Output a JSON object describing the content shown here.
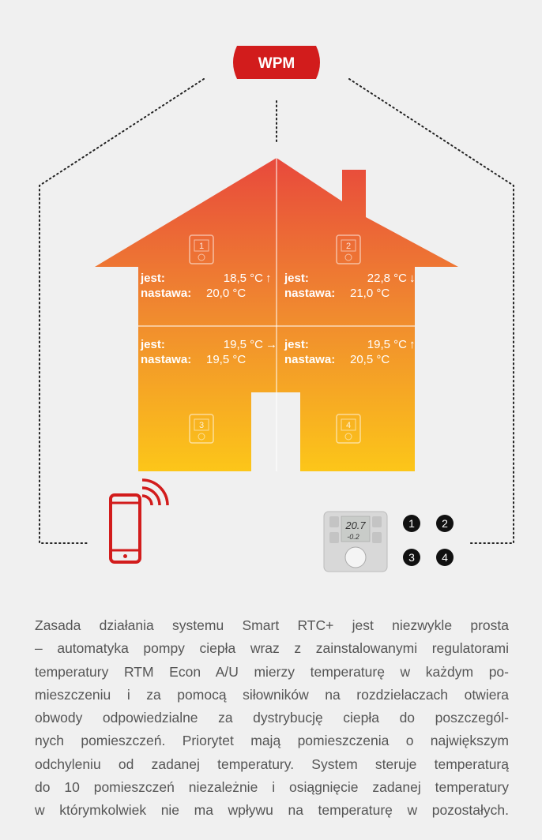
{
  "badge": {
    "label": "WPM"
  },
  "rooms": [
    {
      "number": "1",
      "jest_label": "jest:",
      "jest_value": "18,5 °C",
      "arrow": "↑",
      "nastawa_label": "nastawa:",
      "nastawa_value": "20,0 °C"
    },
    {
      "number": "2",
      "jest_label": "jest:",
      "jest_value": "22,8 °C",
      "arrow": "↓",
      "nastawa_label": "nastawa:",
      "nastawa_value": "21,0 °C"
    },
    {
      "number": "3",
      "jest_label": "jest:",
      "jest_value": "19,5 °C",
      "arrow": "→",
      "nastawa_label": "nastawa:",
      "nastawa_value": "19,5 °C"
    },
    {
      "number": "4",
      "jest_label": "jest:",
      "jest_value": "19,5 °C",
      "arrow": "↑",
      "nastawa_label": "nastawa:",
      "nastawa_value": "20,5 °C"
    }
  ],
  "thermostat": {
    "display_top": "20.7",
    "display_bottom": "-0.2"
  },
  "device_zones": [
    "1",
    "2",
    "3",
    "4"
  ],
  "paragraph_lines": [
    "Zasada działania systemu Smart RTC+ jest niezwykle prosta",
    "– automatyka pompy ciepła wraz z zainstalowanymi regulatorami",
    "temperatury RTM Econ A/U mierzy temperaturę w każdym po-",
    "mieszczeniu i za pomocą siłowników na rozdzielaczach otwiera",
    "obwody odpowiedzialne za dystrybucję ciepła do poszczegól-",
    "nych pomieszczeń. Priorytet mają pomieszczenia o największym",
    "odchyleniu od zadanej temperatury. System steruje temperaturą",
    "do 10 pomieszczeń niezależnie i osiągnięcie zadanej temperatury",
    "w którymkolwiek nie ma wpływu na temperaturę w pozostałych."
  ]
}
